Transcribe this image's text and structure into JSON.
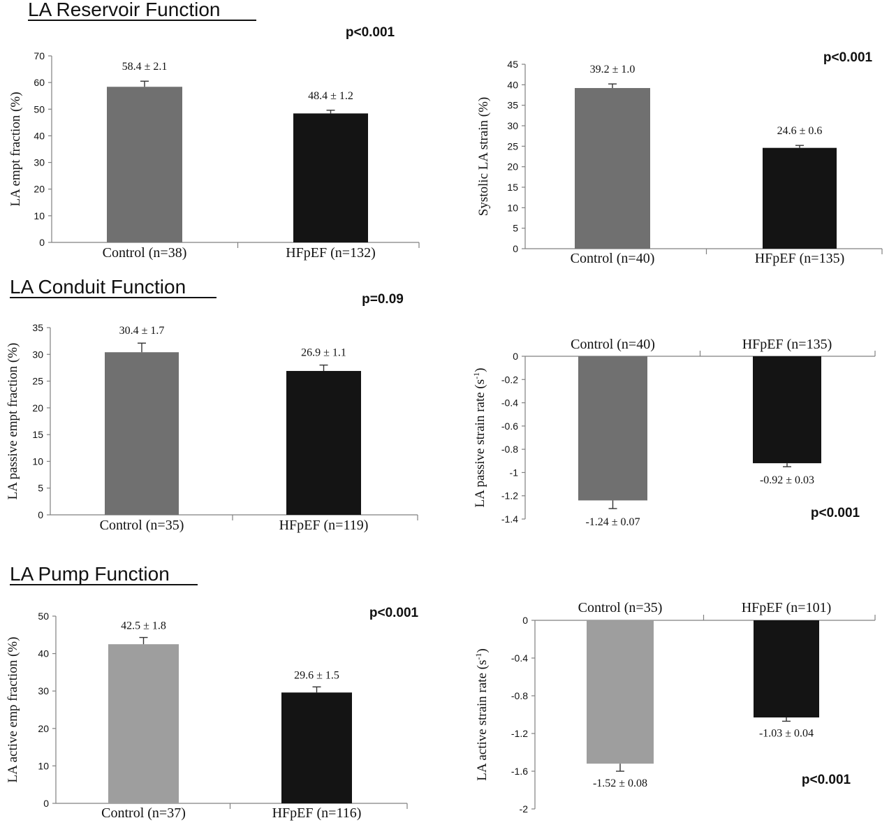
{
  "sections": [
    {
      "title": "LA Reservoir Function"
    },
    {
      "title": "LA Conduit Function"
    },
    {
      "title": "LA Pump Function"
    }
  ],
  "chart_data": [
    {
      "type": "bar",
      "section": "LA Reservoir Function",
      "ylabel": "LA empt fraction (%)",
      "ylim": [
        0,
        70
      ],
      "yticks": [
        0,
        10,
        20,
        30,
        40,
        50,
        60,
        70
      ],
      "ytick_labels": [
        "0",
        "10",
        "20",
        "30",
        "40",
        "50",
        "60",
        "70"
      ],
      "categories": [
        "Control  (n=38)",
        "HFpEF (n=132)"
      ],
      "values": [
        58.4,
        48.4
      ],
      "errors": [
        2.1,
        1.2
      ],
      "data_labels": [
        "58.4 ± 2.1",
        "48.4 ± 1.2"
      ],
      "colors": [
        "#707070",
        "#141414"
      ],
      "p_value": "p<0.001",
      "category_position": "bottom"
    },
    {
      "type": "bar",
      "section": "LA Reservoir Function",
      "ylabel": "Systolic LA strain (%)",
      "ylim": [
        0,
        45
      ],
      "yticks": [
        0,
        5,
        10,
        15,
        20,
        25,
        30,
        35,
        40,
        45
      ],
      "ytick_labels": [
        "0",
        "5",
        "10",
        "15",
        "20",
        "25",
        "30",
        "35",
        "40",
        "45"
      ],
      "categories": [
        "Control  (n=40)",
        "HFpEF (n=135)"
      ],
      "values": [
        39.2,
        24.6
      ],
      "errors": [
        1.0,
        0.6
      ],
      "data_labels": [
        "39.2 ± 1.0",
        "24.6 ± 0.6"
      ],
      "colors": [
        "#707070",
        "#141414"
      ],
      "p_value": "p<0.001",
      "category_position": "bottom"
    },
    {
      "type": "bar",
      "section": "LA Conduit Function",
      "ylabel": "LA passive empt fraction (%)",
      "ylim": [
        0,
        35
      ],
      "yticks": [
        0,
        5,
        10,
        15,
        20,
        25,
        30,
        35
      ],
      "ytick_labels": [
        "0",
        "5",
        "10",
        "15",
        "20",
        "25",
        "30",
        "35"
      ],
      "categories": [
        "Control  (n=35)",
        "HFpEF (n=119)"
      ],
      "values": [
        30.4,
        26.9
      ],
      "errors": [
        1.7,
        1.1
      ],
      "data_labels": [
        "30.4 ± 1.7",
        "26.9 ± 1.1"
      ],
      "colors": [
        "#707070",
        "#141414"
      ],
      "p_value": "p=0.09",
      "category_position": "bottom"
    },
    {
      "type": "bar",
      "section": "LA Conduit Function",
      "ylabel": "LA  passive strain rate (s-1)",
      "ylabel_main": "LA  passive strain rate (s",
      "ylabel_sup": "-1",
      "ylabel_end": ")",
      "ylim": [
        -1.4,
        0
      ],
      "yticks": [
        0,
        -0.2,
        -0.4,
        -0.6,
        -0.8,
        -1,
        -1.2,
        -1.4
      ],
      "ytick_labels": [
        "0",
        "-0.2",
        "-0.4",
        "-0.6",
        "-0.8",
        "-1",
        "-1.2",
        "-1.4"
      ],
      "categories": [
        "Control  (n=40)",
        "HFpEF (n=135)"
      ],
      "values": [
        -1.24,
        -0.92
      ],
      "errors": [
        0.07,
        0.03
      ],
      "data_labels": [
        "-1.24 ± 0.07",
        "-0.92 ± 0.03"
      ],
      "colors": [
        "#707070",
        "#141414"
      ],
      "p_value": "p<0.001",
      "category_position": "top"
    },
    {
      "type": "bar",
      "section": "LA Pump Function",
      "ylabel": "LA active emp fraction (%)",
      "ylim": [
        0,
        50
      ],
      "yticks": [
        0,
        10,
        20,
        30,
        40,
        50
      ],
      "ytick_labels": [
        "0",
        "10",
        "20",
        "30",
        "40",
        "50"
      ],
      "categories": [
        "Control  (n=37)",
        "HFpEF (n=116)"
      ],
      "values": [
        42.5,
        29.6
      ],
      "errors": [
        1.8,
        1.5
      ],
      "data_labels": [
        "42.5 ± 1.8",
        "29.6 ± 1.5"
      ],
      "colors": [
        "#9e9e9e",
        "#141414"
      ],
      "p_value": "p<0.001",
      "category_position": "bottom"
    },
    {
      "type": "bar",
      "section": "LA Pump Function",
      "ylabel": "LA active strain rate (s-1)",
      "ylabel_main": "LA active strain rate (s",
      "ylabel_sup": "-1",
      "ylabel_end": ")",
      "ylim": [
        -2,
        0
      ],
      "yticks": [
        0,
        -0.4,
        -0.8,
        -1.2,
        -1.6,
        -2
      ],
      "ytick_labels": [
        "0",
        "-0.4",
        "-0.8",
        "-1.2",
        "-1.6",
        "-2"
      ],
      "categories": [
        "Control  (n=35)",
        "HFpEF (n=101)"
      ],
      "values": [
        -1.52,
        -1.03
      ],
      "errors": [
        0.08,
        0.04
      ],
      "data_labels": [
        "-1.52 ± 0.08",
        "-1.03 ± 0.04"
      ],
      "colors": [
        "#9e9e9e",
        "#141414"
      ],
      "p_value": "p<0.001",
      "category_position": "top"
    }
  ]
}
